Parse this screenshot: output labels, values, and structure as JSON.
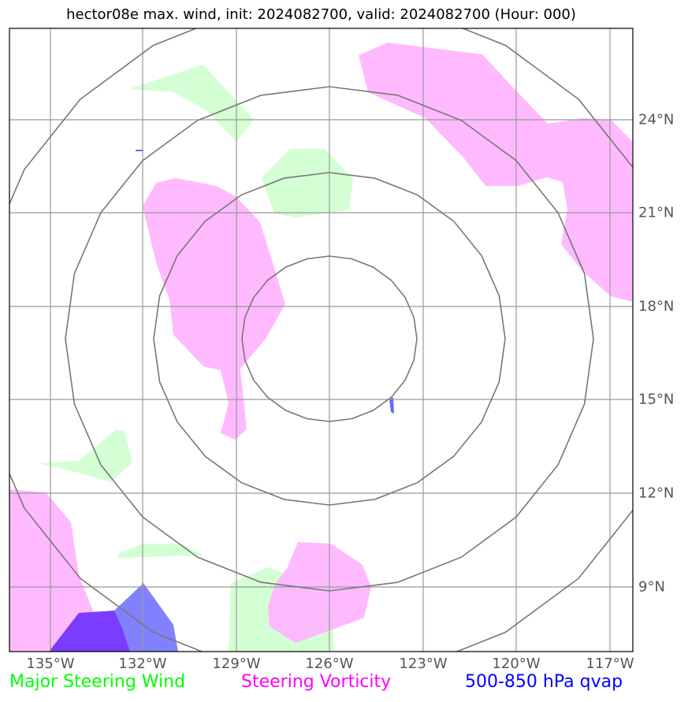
{
  "title": "hector08e max. wind, init: 2024082700, valid: 2024082700 (Hour: 000)",
  "map": {
    "lon_ticks": [
      "135°W",
      "132°W",
      "129°W",
      "126°W",
      "123°W",
      "120°W",
      "117°W"
    ],
    "lat_ticks": [
      "24°N",
      "21°N",
      "18°N",
      "15°N",
      "12°N",
      "9°N"
    ],
    "gridlines": true,
    "range_rings": 4
  },
  "legend": {
    "wind": {
      "label": "Major Steering Wind",
      "color": "#00ff00"
    },
    "vorticity": {
      "label": "Steering Vorticity",
      "color": "#ff00ff"
    },
    "qvap": {
      "label": "500-850 hPa qvap",
      "color": "#0000ff"
    }
  },
  "colors": {
    "wind_fill": "#ccffcc",
    "vorticity_fill": "#ffb3ff",
    "qvap_fill": "#7070ff",
    "qvap_dark": "#7a3cff",
    "grid": "#999999",
    "rings": "#777777"
  }
}
